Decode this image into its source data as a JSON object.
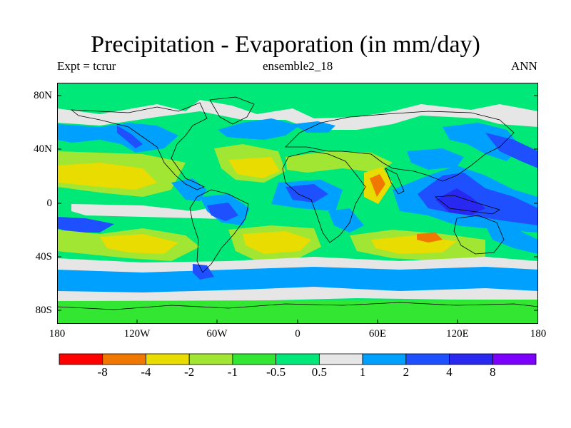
{
  "header": {
    "title": "Precipitation - Evaporation (in mm/day)",
    "left_label": "Expt = tcrur",
    "center_label": "ensemble2_18",
    "right_label": "ANN"
  },
  "map": {
    "projection": "cylindrical equidistant",
    "lon_range": [
      -180,
      180
    ],
    "lat_range": [
      -90,
      90
    ],
    "y_ticks": [
      "80N",
      "40N",
      "0",
      "40S",
      "80S"
    ],
    "x_ticks": [
      "180",
      "120W",
      "60W",
      "0",
      "60E",
      "120E",
      "180"
    ]
  },
  "colorbar": {
    "colors": [
      "#ff0000",
      "#f07800",
      "#e8dc00",
      "#a0e632",
      "#32e632",
      "#00e878",
      "#e6e6e6",
      "#00a0ff",
      "#1e50ff",
      "#2828f0",
      "#7d00ff"
    ],
    "labels": [
      "-8",
      "-4",
      "-2",
      "-1",
      "-0.5",
      "0.5",
      "1",
      "2",
      "4",
      "8"
    ]
  }
}
